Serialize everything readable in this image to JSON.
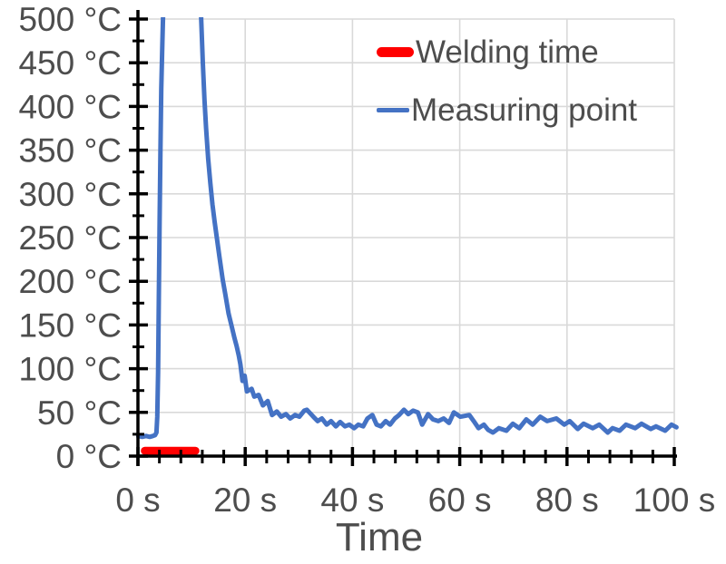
{
  "colors": {
    "background": "#FFFFFF",
    "axis": "#000000",
    "grid": "#D9D9D9",
    "tick_label": "#4D4D4D",
    "welding_red": "#FF0000",
    "measuring_blue": "#4472C4"
  },
  "legend": {
    "items": [
      {
        "label": "Welding time",
        "color": "#FF0000"
      },
      {
        "label": "Measuring point",
        "color": "#4472C4"
      }
    ]
  },
  "chart_data": {
    "type": "line",
    "title": "",
    "xlabel": "Time",
    "ylabel": "",
    "x_unit": "s",
    "y_unit": "°C",
    "xlim": [
      0,
      100
    ],
    "ylim": [
      0,
      500
    ],
    "grid": true,
    "legend_position": "top-inside",
    "x_major_ticks": [
      0,
      20,
      40,
      60,
      80,
      100
    ],
    "x_tick_labels": [
      "0 s",
      "20 s",
      "40 s",
      "60 s",
      "80 s",
      "100 s"
    ],
    "x_minor_step": 4,
    "y_major_ticks": [
      0,
      50,
      100,
      150,
      200,
      250,
      300,
      350,
      400,
      450,
      500
    ],
    "y_tick_labels": [
      "0 °C",
      "50 °C",
      "100 °C",
      "150 °C",
      "200 °C",
      "250 °C",
      "300 °C",
      "350 °C",
      "400 °C",
      "450 °C",
      "500 °C"
    ],
    "y_minor_step": 25,
    "series": [
      {
        "name": "Welding time",
        "type": "interval-bar",
        "color": "#FF0000",
        "start_s": 1.3,
        "end_s": 10.7,
        "level_c": 6
      },
      {
        "name": "Measuring point",
        "type": "line",
        "color": "#4472C4",
        "peak_note": "exceeds 500 °C (clipped at plot top) between ~4.8 s and ~11.8 s",
        "points": [
          [
            0,
            23
          ],
          [
            0.8,
            22
          ],
          [
            1.5,
            23
          ],
          [
            2.2,
            22
          ],
          [
            2.8,
            23
          ],
          [
            3.2,
            24
          ],
          [
            3.45,
            27
          ],
          [
            3.6,
            45
          ],
          [
            3.75,
            95
          ],
          [
            3.9,
            180
          ],
          [
            4.05,
            270
          ],
          [
            4.2,
            350
          ],
          [
            4.35,
            420
          ],
          [
            4.55,
            472
          ],
          [
            4.75,
            520
          ],
          [
            5.0,
            650
          ],
          [
            11.3,
            650
          ],
          [
            11.55,
            540
          ],
          [
            11.8,
            500
          ],
          [
            12.1,
            450
          ],
          [
            12.4,
            408
          ],
          [
            12.7,
            375
          ],
          [
            13.1,
            340
          ],
          [
            13.5,
            312
          ],
          [
            13.9,
            288
          ],
          [
            14.3,
            268
          ],
          [
            14.7,
            250
          ],
          [
            15.2,
            228
          ],
          [
            15.8,
            202
          ],
          [
            16.3,
            185
          ],
          [
            16.9,
            163
          ],
          [
            17.5,
            148
          ],
          [
            18.0,
            135
          ],
          [
            18.4,
            126
          ],
          [
            18.8,
            115
          ],
          [
            19.1,
            105
          ],
          [
            19.5,
            86
          ],
          [
            19.9,
            92
          ],
          [
            20.3,
            74
          ],
          [
            21.2,
            77
          ],
          [
            21.7,
            68
          ],
          [
            22.5,
            70
          ],
          [
            23.3,
            58
          ],
          [
            24.2,
            63
          ],
          [
            25.0,
            47
          ],
          [
            25.9,
            51
          ],
          [
            26.7,
            45
          ],
          [
            27.6,
            48
          ],
          [
            28.4,
            43
          ],
          [
            29.3,
            47
          ],
          [
            30.1,
            45
          ],
          [
            31.0,
            52
          ],
          [
            31.5,
            53
          ],
          [
            32.7,
            45
          ],
          [
            33.5,
            40
          ],
          [
            34.3,
            43
          ],
          [
            35.2,
            36
          ],
          [
            36.0,
            40
          ],
          [
            36.9,
            34
          ],
          [
            37.7,
            39
          ],
          [
            38.6,
            34
          ],
          [
            39.4,
            36
          ],
          [
            40.3,
            32
          ],
          [
            41.1,
            36
          ],
          [
            42.0,
            34
          ],
          [
            42.8,
            43
          ],
          [
            43.7,
            47
          ],
          [
            44.5,
            36
          ],
          [
            45.3,
            34
          ],
          [
            46.2,
            40
          ],
          [
            47.0,
            36
          ],
          [
            47.9,
            43
          ],
          [
            48.7,
            47
          ],
          [
            49.6,
            53
          ],
          [
            50.4,
            48
          ],
          [
            51.3,
            52
          ],
          [
            52.2,
            50
          ],
          [
            53.0,
            36
          ],
          [
            54.1,
            48
          ],
          [
            55.0,
            42
          ],
          [
            56.0,
            40
          ],
          [
            57.0,
            43
          ],
          [
            58.0,
            38
          ],
          [
            58.9,
            50
          ],
          [
            60.1,
            45
          ],
          [
            61.8,
            47
          ],
          [
            62.6,
            40
          ],
          [
            63.5,
            32
          ],
          [
            64.5,
            36
          ],
          [
            65.3,
            30
          ],
          [
            66.2,
            27
          ],
          [
            67.3,
            32
          ],
          [
            68.7,
            29
          ],
          [
            69.9,
            37
          ],
          [
            71.1,
            32
          ],
          [
            72.4,
            42
          ],
          [
            73.6,
            36
          ],
          [
            75.0,
            45
          ],
          [
            76.3,
            40
          ],
          [
            78.0,
            43
          ],
          [
            79.5,
            36
          ],
          [
            80.5,
            40
          ],
          [
            82.0,
            31
          ],
          [
            83.1,
            37
          ],
          [
            84.8,
            32
          ],
          [
            86.0,
            36
          ],
          [
            87.6,
            27
          ],
          [
            88.5,
            32
          ],
          [
            89.8,
            29
          ],
          [
            91.0,
            36
          ],
          [
            92.7,
            32
          ],
          [
            93.9,
            37
          ],
          [
            95.6,
            31
          ],
          [
            96.6,
            34
          ],
          [
            98.3,
            29
          ],
          [
            99.5,
            36
          ],
          [
            100.4,
            33
          ]
        ]
      }
    ]
  }
}
